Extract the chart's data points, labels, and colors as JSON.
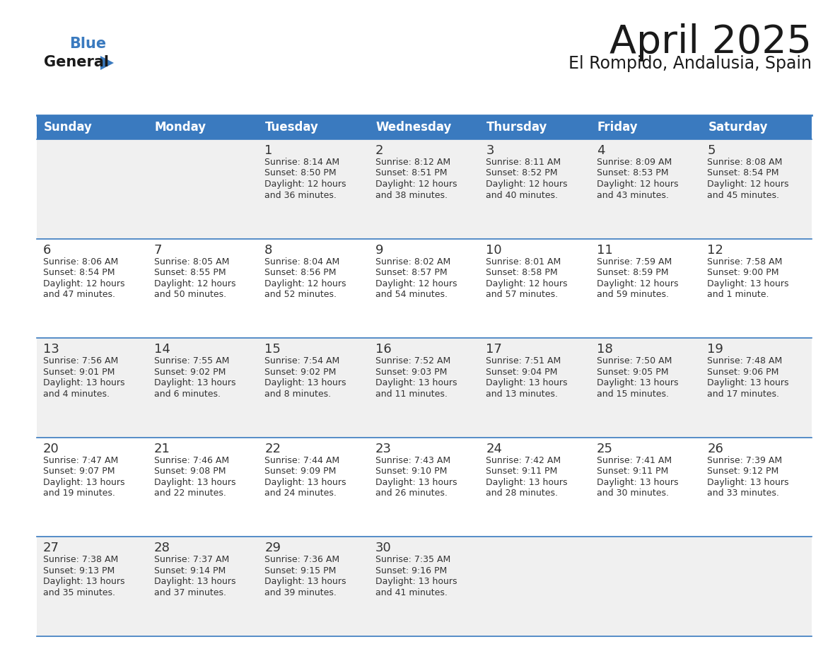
{
  "title": "April 2025",
  "subtitle": "El Rompido, Andalusia, Spain",
  "header_color": "#3a7abf",
  "header_text_color": "#ffffff",
  "row_bg_even": "#f0f0f0",
  "row_bg_odd": "#ffffff",
  "day_headers": [
    "Sunday",
    "Monday",
    "Tuesday",
    "Wednesday",
    "Thursday",
    "Friday",
    "Saturday"
  ],
  "border_color": "#3a7abf",
  "divider_color": "#3a7abf",
  "text_color": "#333333",
  "days": [
    {
      "day": null,
      "sunrise": null,
      "sunset": null,
      "daylight": null
    },
    {
      "day": null,
      "sunrise": null,
      "sunset": null,
      "daylight": null
    },
    {
      "day": 1,
      "sunrise": "8:14 AM",
      "sunset": "8:50 PM",
      "daylight": "12 hours\nand 36 minutes."
    },
    {
      "day": 2,
      "sunrise": "8:12 AM",
      "sunset": "8:51 PM",
      "daylight": "12 hours\nand 38 minutes."
    },
    {
      "day": 3,
      "sunrise": "8:11 AM",
      "sunset": "8:52 PM",
      "daylight": "12 hours\nand 40 minutes."
    },
    {
      "day": 4,
      "sunrise": "8:09 AM",
      "sunset": "8:53 PM",
      "daylight": "12 hours\nand 43 minutes."
    },
    {
      "day": 5,
      "sunrise": "8:08 AM",
      "sunset": "8:54 PM",
      "daylight": "12 hours\nand 45 minutes."
    },
    {
      "day": 6,
      "sunrise": "8:06 AM",
      "sunset": "8:54 PM",
      "daylight": "12 hours\nand 47 minutes."
    },
    {
      "day": 7,
      "sunrise": "8:05 AM",
      "sunset": "8:55 PM",
      "daylight": "12 hours\nand 50 minutes."
    },
    {
      "day": 8,
      "sunrise": "8:04 AM",
      "sunset": "8:56 PM",
      "daylight": "12 hours\nand 52 minutes."
    },
    {
      "day": 9,
      "sunrise": "8:02 AM",
      "sunset": "8:57 PM",
      "daylight": "12 hours\nand 54 minutes."
    },
    {
      "day": 10,
      "sunrise": "8:01 AM",
      "sunset": "8:58 PM",
      "daylight": "12 hours\nand 57 minutes."
    },
    {
      "day": 11,
      "sunrise": "7:59 AM",
      "sunset": "8:59 PM",
      "daylight": "12 hours\nand 59 minutes."
    },
    {
      "day": 12,
      "sunrise": "7:58 AM",
      "sunset": "9:00 PM",
      "daylight": "13 hours\nand 1 minute."
    },
    {
      "day": 13,
      "sunrise": "7:56 AM",
      "sunset": "9:01 PM",
      "daylight": "13 hours\nand 4 minutes."
    },
    {
      "day": 14,
      "sunrise": "7:55 AM",
      "sunset": "9:02 PM",
      "daylight": "13 hours\nand 6 minutes."
    },
    {
      "day": 15,
      "sunrise": "7:54 AM",
      "sunset": "9:02 PM",
      "daylight": "13 hours\nand 8 minutes."
    },
    {
      "day": 16,
      "sunrise": "7:52 AM",
      "sunset": "9:03 PM",
      "daylight": "13 hours\nand 11 minutes."
    },
    {
      "day": 17,
      "sunrise": "7:51 AM",
      "sunset": "9:04 PM",
      "daylight": "13 hours\nand 13 minutes."
    },
    {
      "day": 18,
      "sunrise": "7:50 AM",
      "sunset": "9:05 PM",
      "daylight": "13 hours\nand 15 minutes."
    },
    {
      "day": 19,
      "sunrise": "7:48 AM",
      "sunset": "9:06 PM",
      "daylight": "13 hours\nand 17 minutes."
    },
    {
      "day": 20,
      "sunrise": "7:47 AM",
      "sunset": "9:07 PM",
      "daylight": "13 hours\nand 19 minutes."
    },
    {
      "day": 21,
      "sunrise": "7:46 AM",
      "sunset": "9:08 PM",
      "daylight": "13 hours\nand 22 minutes."
    },
    {
      "day": 22,
      "sunrise": "7:44 AM",
      "sunset": "9:09 PM",
      "daylight": "13 hours\nand 24 minutes."
    },
    {
      "day": 23,
      "sunrise": "7:43 AM",
      "sunset": "9:10 PM",
      "daylight": "13 hours\nand 26 minutes."
    },
    {
      "day": 24,
      "sunrise": "7:42 AM",
      "sunset": "9:11 PM",
      "daylight": "13 hours\nand 28 minutes."
    },
    {
      "day": 25,
      "sunrise": "7:41 AM",
      "sunset": "9:11 PM",
      "daylight": "13 hours\nand 30 minutes."
    },
    {
      "day": 26,
      "sunrise": "7:39 AM",
      "sunset": "9:12 PM",
      "daylight": "13 hours\nand 33 minutes."
    },
    {
      "day": 27,
      "sunrise": "7:38 AM",
      "sunset": "9:13 PM",
      "daylight": "13 hours\nand 35 minutes."
    },
    {
      "day": 28,
      "sunrise": "7:37 AM",
      "sunset": "9:14 PM",
      "daylight": "13 hours\nand 37 minutes."
    },
    {
      "day": 29,
      "sunrise": "7:36 AM",
      "sunset": "9:15 PM",
      "daylight": "13 hours\nand 39 minutes."
    },
    {
      "day": 30,
      "sunrise": "7:35 AM",
      "sunset": "9:16 PM",
      "daylight": "13 hours\nand 41 minutes."
    },
    {
      "day": null,
      "sunrise": null,
      "sunset": null,
      "daylight": null
    },
    {
      "day": null,
      "sunrise": null,
      "sunset": null,
      "daylight": null
    },
    {
      "day": null,
      "sunrise": null,
      "sunset": null,
      "daylight": null
    }
  ],
  "logo_color_general": "#1a1a1a",
  "logo_color_blue": "#3a7abf",
  "logo_triangle_color": "#3a7abf",
  "title_fontsize": 40,
  "subtitle_fontsize": 17,
  "header_fontsize": 12,
  "day_num_fontsize": 13,
  "cell_text_fontsize": 9
}
